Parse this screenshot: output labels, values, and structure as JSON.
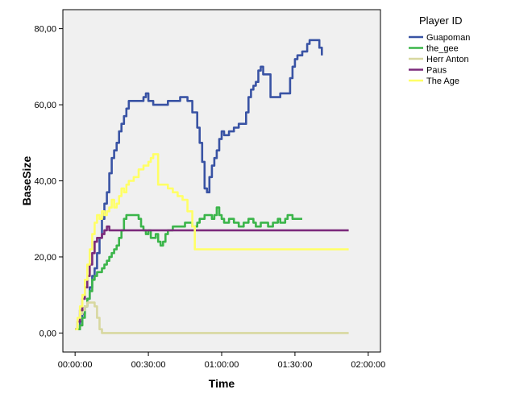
{
  "chart_data": {
    "type": "line",
    "xlabel": "Time",
    "ylabel": "BaseSize",
    "xlim": [
      -5,
      125
    ],
    "ylim": [
      -5,
      85
    ],
    "x_ticks": [
      {
        "value": 0,
        "label": "00:00:00"
      },
      {
        "value": 30,
        "label": "00:30:00"
      },
      {
        "value": 60,
        "label": "01:00:00"
      },
      {
        "value": 90,
        "label": "01:30:00"
      },
      {
        "value": 120,
        "label": "02:00:00"
      }
    ],
    "y_ticks": [
      {
        "value": 0,
        "label": "0,00"
      },
      {
        "value": 20,
        "label": "20,00"
      },
      {
        "value": 40,
        "label": "40,00"
      },
      {
        "value": 60,
        "label": "60,00"
      },
      {
        "value": 80,
        "label": "80,00"
      }
    ],
    "grid": false,
    "legend": {
      "title": "Player ID",
      "placement": "top-right"
    },
    "series": [
      {
        "name": "Guapoman",
        "color": "#3953a4",
        "points": [
          [
            0,
            1
          ],
          [
            2,
            3
          ],
          [
            3,
            5
          ],
          [
            4,
            7
          ],
          [
            5,
            9
          ],
          [
            6,
            12
          ],
          [
            7,
            15
          ],
          [
            8,
            17
          ],
          [
            9,
            21
          ],
          [
            10,
            25
          ],
          [
            11,
            30
          ],
          [
            12,
            34
          ],
          [
            13,
            37
          ],
          [
            14,
            42
          ],
          [
            15,
            46
          ],
          [
            16,
            48
          ],
          [
            17,
            50
          ],
          [
            18,
            53
          ],
          [
            19,
            55
          ],
          [
            20,
            57
          ],
          [
            21,
            59
          ],
          [
            22,
            61
          ],
          [
            24,
            61
          ],
          [
            27,
            61
          ],
          [
            28,
            62
          ],
          [
            29,
            63
          ],
          [
            30,
            61
          ],
          [
            32,
            60
          ],
          [
            35,
            60
          ],
          [
            38,
            61
          ],
          [
            43,
            62
          ],
          [
            46,
            61
          ],
          [
            48,
            58
          ],
          [
            50,
            54
          ],
          [
            51,
            50
          ],
          [
            52,
            45
          ],
          [
            53,
            38
          ],
          [
            54,
            37
          ],
          [
            55,
            41
          ],
          [
            56,
            44
          ],
          [
            57,
            46
          ],
          [
            58,
            48
          ],
          [
            59,
            51
          ],
          [
            60,
            53
          ],
          [
            61,
            52
          ],
          [
            63,
            53
          ],
          [
            65,
            54
          ],
          [
            67,
            55
          ],
          [
            69,
            55
          ],
          [
            70,
            58
          ],
          [
            71,
            62
          ],
          [
            72,
            64
          ],
          [
            73,
            65
          ],
          [
            74,
            66
          ],
          [
            75,
            69
          ],
          [
            76,
            70
          ],
          [
            77,
            68
          ],
          [
            79,
            68
          ],
          [
            80,
            62
          ],
          [
            83,
            62
          ],
          [
            84,
            63
          ],
          [
            87,
            63
          ],
          [
            88,
            67
          ],
          [
            89,
            70
          ],
          [
            90,
            72
          ],
          [
            91,
            73
          ],
          [
            93,
            74
          ],
          [
            95,
            76
          ],
          [
            96,
            77
          ],
          [
            99,
            77
          ],
          [
            100,
            75
          ],
          [
            101,
            73
          ]
        ]
      },
      {
        "name": "the_gee",
        "color": "#3bb54a",
        "points": [
          [
            0,
            1
          ],
          [
            2,
            2
          ],
          [
            3,
            4
          ],
          [
            4,
            7
          ],
          [
            5,
            9
          ],
          [
            6,
            11
          ],
          [
            7,
            14
          ],
          [
            8,
            15
          ],
          [
            9,
            16
          ],
          [
            10,
            16
          ],
          [
            11,
            17
          ],
          [
            12,
            18
          ],
          [
            13,
            19
          ],
          [
            14,
            20
          ],
          [
            15,
            21
          ],
          [
            16,
            22
          ],
          [
            17,
            23
          ],
          [
            18,
            25
          ],
          [
            19,
            27
          ],
          [
            20,
            30
          ],
          [
            21,
            31
          ],
          [
            23,
            31
          ],
          [
            25,
            31
          ],
          [
            26,
            30
          ],
          [
            27,
            28
          ],
          [
            28,
            27
          ],
          [
            29,
            26
          ],
          [
            30,
            27
          ],
          [
            31,
            25
          ],
          [
            33,
            26
          ],
          [
            34,
            24
          ],
          [
            35,
            23
          ],
          [
            36,
            24
          ],
          [
            37,
            26
          ],
          [
            38,
            27
          ],
          [
            40,
            28
          ],
          [
            44,
            28
          ],
          [
            45,
            29
          ],
          [
            47,
            29
          ],
          [
            48,
            28
          ],
          [
            50,
            29
          ],
          [
            51,
            30
          ],
          [
            53,
            31
          ],
          [
            55,
            31
          ],
          [
            56,
            30
          ],
          [
            57,
            31
          ],
          [
            58,
            33
          ],
          [
            59,
            31
          ],
          [
            60,
            30
          ],
          [
            61,
            29
          ],
          [
            62,
            29
          ],
          [
            63,
            30
          ],
          [
            65,
            29
          ],
          [
            66,
            29
          ],
          [
            67,
            28
          ],
          [
            69,
            29
          ],
          [
            70,
            29
          ],
          [
            71,
            30
          ],
          [
            73,
            29
          ],
          [
            74,
            28
          ],
          [
            76,
            29
          ],
          [
            78,
            29
          ],
          [
            79,
            28
          ],
          [
            81,
            29
          ],
          [
            83,
            30
          ],
          [
            84,
            29
          ],
          [
            86,
            30
          ],
          [
            87,
            31
          ],
          [
            89,
            30
          ],
          [
            91,
            30
          ],
          [
            93,
            30
          ]
        ]
      },
      {
        "name": "Herr Anton",
        "color": "#d8d8a0",
        "points": [
          [
            0,
            1
          ],
          [
            1,
            3
          ],
          [
            2,
            5
          ],
          [
            3,
            6
          ],
          [
            4,
            7
          ],
          [
            5,
            8
          ],
          [
            6,
            8
          ],
          [
            7,
            8
          ],
          [
            8,
            7
          ],
          [
            9,
            4
          ],
          [
            10,
            1
          ],
          [
            11,
            0
          ],
          [
            40,
            0
          ],
          [
            80,
            0
          ],
          [
            112,
            0
          ]
        ]
      },
      {
        "name": "Paus",
        "color": "#7b2a7b",
        "points": [
          [
            0,
            1
          ],
          [
            1,
            3
          ],
          [
            2,
            6
          ],
          [
            3,
            9
          ],
          [
            4,
            12
          ],
          [
            5,
            15
          ],
          [
            6,
            18
          ],
          [
            7,
            21
          ],
          [
            8,
            24
          ],
          [
            9,
            25
          ],
          [
            10,
            25
          ],
          [
            11,
            26
          ],
          [
            12,
            27
          ],
          [
            13,
            28
          ],
          [
            14,
            27
          ],
          [
            20,
            27
          ],
          [
            40,
            27
          ],
          [
            80,
            27
          ],
          [
            112,
            27
          ]
        ]
      },
      {
        "name": "The Age",
        "color": "#ffff66",
        "points": [
          [
            0,
            1
          ],
          [
            1,
            4
          ],
          [
            2,
            7
          ],
          [
            3,
            10
          ],
          [
            4,
            14
          ],
          [
            5,
            18
          ],
          [
            6,
            22
          ],
          [
            7,
            26
          ],
          [
            8,
            29
          ],
          [
            9,
            31
          ],
          [
            10,
            30
          ],
          [
            11,
            32
          ],
          [
            12,
            31
          ],
          [
            13,
            32
          ],
          [
            14,
            33
          ],
          [
            15,
            35
          ],
          [
            16,
            33
          ],
          [
            17,
            34
          ],
          [
            18,
            36
          ],
          [
            19,
            38
          ],
          [
            20,
            37
          ],
          [
            21,
            39
          ],
          [
            22,
            40
          ],
          [
            24,
            41
          ],
          [
            26,
            43
          ],
          [
            28,
            44
          ],
          [
            30,
            45
          ],
          [
            31,
            46
          ],
          [
            32,
            47
          ],
          [
            33,
            47
          ],
          [
            34,
            39
          ],
          [
            36,
            39
          ],
          [
            38,
            38
          ],
          [
            40,
            37
          ],
          [
            42,
            36
          ],
          [
            44,
            35
          ],
          [
            46,
            32
          ],
          [
            48,
            28
          ],
          [
            49,
            22
          ],
          [
            52,
            22
          ],
          [
            60,
            22
          ],
          [
            80,
            22
          ],
          [
            112,
            22
          ]
        ]
      }
    ]
  }
}
